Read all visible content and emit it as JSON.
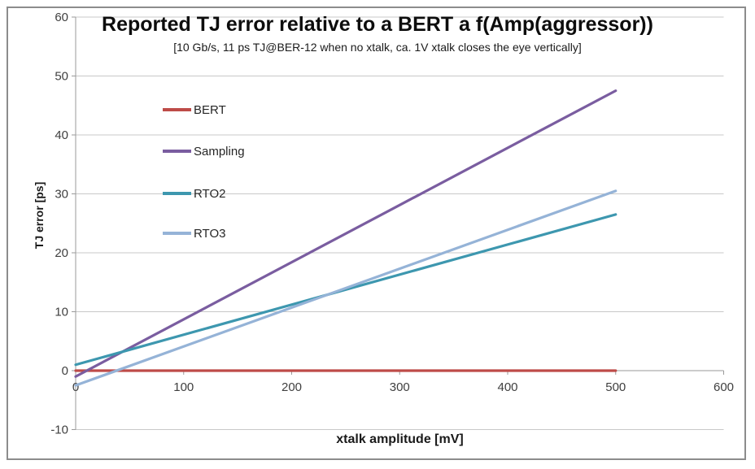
{
  "chart_data": {
    "type": "line",
    "title": "Reported TJ error relative to a BERT a f(Amp(aggressor))",
    "subtitle": "[10 Gb/s, 11 ps TJ@BER-12 when no xtalk, ca. 1V xtalk closes the eye vertically]",
    "xlabel": "xtalk amplitude [mV]",
    "ylabel": "TJ error [ps]",
    "xlim": [
      0,
      600
    ],
    "ylim": [
      -10,
      60
    ],
    "x_ticks": [
      0,
      100,
      200,
      300,
      400,
      500,
      600
    ],
    "y_ticks": [
      60,
      50,
      40,
      30,
      20,
      10,
      0,
      -10
    ],
    "grid": "horizontal-only",
    "legend_position": "inside-top-left",
    "colors": {
      "gridline": "#c8c8c8",
      "axis": "#9a9a9a",
      "tick_label": "#3f3f3f"
    },
    "series": [
      {
        "name": "BERT",
        "color": "#be4b48",
        "x": [
          0,
          500
        ],
        "y": [
          0,
          0
        ]
      },
      {
        "name": "Sampling",
        "color": "#7a5da0",
        "x": [
          0,
          500
        ],
        "y": [
          -1,
          47.5
        ]
      },
      {
        "name": "RTO2",
        "color": "#3d97af",
        "x": [
          0,
          500
        ],
        "y": [
          1,
          26.5
        ]
      },
      {
        "name": "RTO3",
        "color": "#95b3d7",
        "x": [
          0,
          500
        ],
        "y": [
          -2.5,
          30.5
        ]
      }
    ]
  }
}
